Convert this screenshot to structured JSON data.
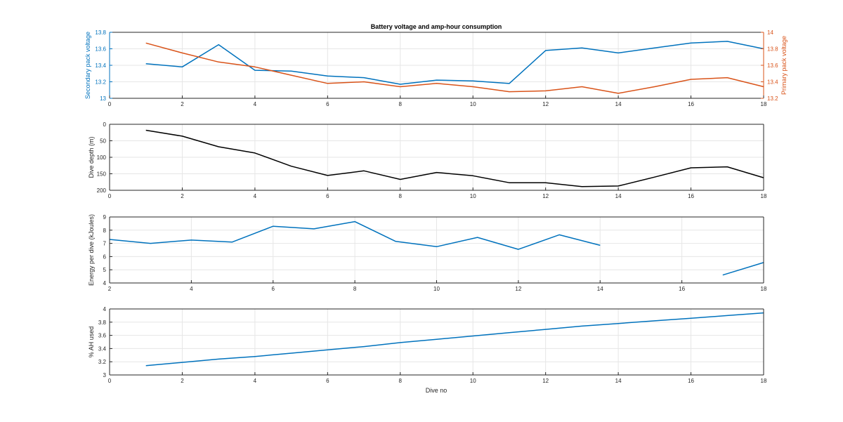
{
  "figure": {
    "title": "Battery voltage and amp-hour consumption",
    "xlabel": "Dive no"
  },
  "chart_data": [
    {
      "type": "line",
      "title": "Battery voltage and amp-hour consumption",
      "xlabel": "",
      "ylabel": "Secondary pack voltage",
      "ylabel_right": "Primary pack voltage",
      "xlim": [
        0,
        18
      ],
      "ylim": [
        13,
        13.8
      ],
      "ylim_right": [
        13.2,
        14
      ],
      "xticks": [
        0,
        2,
        4,
        6,
        8,
        10,
        12,
        14,
        16,
        18
      ],
      "yticks": [
        13,
        13.2,
        13.4,
        13.6,
        13.8
      ],
      "yticks_right": [
        13.2,
        13.4,
        13.6,
        13.8,
        14
      ],
      "grid": true,
      "series": [
        {
          "axis": "left",
          "color": "#0072BD",
          "x": [
            1,
            2,
            3,
            4,
            5,
            6,
            7,
            8,
            9,
            10,
            11,
            12,
            13,
            14,
            15,
            16,
            17,
            18
          ],
          "y": [
            13.42,
            13.38,
            13.65,
            13.34,
            13.33,
            13.27,
            13.25,
            13.17,
            13.22,
            13.21,
            13.18,
            13.58,
            13.61,
            13.55,
            13.61,
            13.67,
            13.69,
            13.6
          ]
        },
        {
          "axis": "right",
          "color": "#D95319",
          "x": [
            1,
            2,
            3,
            4,
            5,
            6,
            7,
            8,
            9,
            10,
            11,
            12,
            13,
            14,
            15,
            16,
            17,
            18
          ],
          "y": [
            13.87,
            13.75,
            13.64,
            13.58,
            13.48,
            13.38,
            13.4,
            13.34,
            13.38,
            13.34,
            13.28,
            13.29,
            13.34,
            13.26,
            13.34,
            13.43,
            13.45,
            13.34
          ]
        }
      ]
    },
    {
      "type": "line",
      "ylabel": "Dive depth (m)",
      "xlim": [
        0,
        18
      ],
      "ylim": [
        0,
        200
      ],
      "y_reversed": true,
      "xticks": [
        0,
        2,
        4,
        6,
        8,
        10,
        12,
        14,
        16,
        18
      ],
      "yticks": [
        0,
        50,
        100,
        150,
        200
      ],
      "grid": true,
      "series": [
        {
          "color": "#000000",
          "x": [
            1,
            2,
            3,
            4,
            5,
            6,
            7,
            8,
            9,
            10,
            11,
            12,
            13,
            14,
            15,
            16,
            17,
            18
          ],
          "y": [
            18,
            36,
            68,
            87,
            127,
            155,
            141,
            167,
            146,
            156,
            177,
            177,
            189,
            187,
            160,
            132,
            129,
            162
          ]
        }
      ]
    },
    {
      "type": "line",
      "ylabel": "Energy per dive (kJoules)",
      "xlim": [
        2,
        18
      ],
      "ylim": [
        4,
        9
      ],
      "xticks": [
        2,
        4,
        6,
        8,
        10,
        12,
        14,
        16,
        18
      ],
      "yticks": [
        4,
        5,
        6,
        7,
        8,
        9
      ],
      "grid": true,
      "series": [
        {
          "color": "#0072BD",
          "segments": [
            {
              "x": [
                2,
                3,
                4,
                5,
                6,
                7,
                8,
                9,
                10,
                11,
                12,
                13,
                14
              ],
              "y": [
                7.3,
                7.0,
                7.25,
                7.1,
                8.3,
                8.1,
                8.65,
                7.15,
                6.75,
                7.45,
                6.55,
                7.65,
                6.85
              ]
            },
            {
              "x": [
                17,
                18
              ],
              "y": [
                4.6,
                5.55
              ]
            }
          ]
        }
      ]
    },
    {
      "type": "line",
      "ylabel": "% AH used",
      "xlabel": "Dive no",
      "xlim": [
        0,
        18
      ],
      "ylim": [
        3,
        4
      ],
      "xticks": [
        0,
        2,
        4,
        6,
        8,
        10,
        12,
        14,
        16,
        18
      ],
      "yticks": [
        3,
        3.2,
        3.4,
        3.6,
        3.8,
        4
      ],
      "grid": true,
      "series": [
        {
          "color": "#0072BD",
          "x": [
            1,
            2,
            3,
            4,
            5,
            6,
            7,
            8,
            9,
            10,
            11,
            12,
            13,
            14,
            15,
            16,
            17,
            18
          ],
          "y": [
            3.14,
            3.19,
            3.24,
            3.28,
            3.33,
            3.38,
            3.43,
            3.49,
            3.54,
            3.59,
            3.64,
            3.69,
            3.74,
            3.78,
            3.82,
            3.86,
            3.9,
            3.94
          ]
        }
      ]
    }
  ]
}
